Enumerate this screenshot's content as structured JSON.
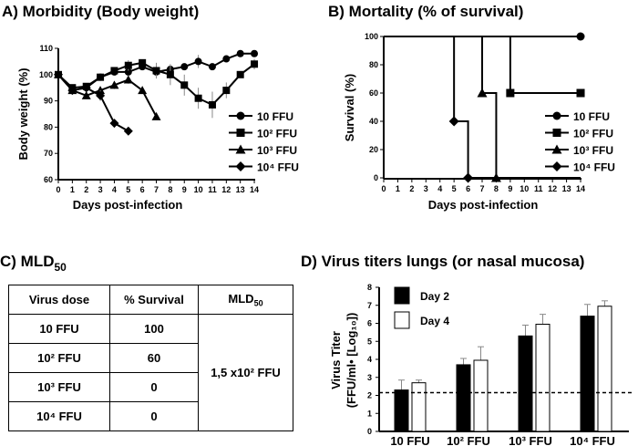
{
  "colors": {
    "ink": "#000000",
    "white": "#ffffff",
    "error": "#888888"
  },
  "chart_data": [
    {
      "type": "line",
      "title": "A) Morbidity (Body weight)",
      "xlabel": "Days post-infection",
      "ylabel": "Body weight (%)",
      "xlim": [
        0,
        14
      ],
      "ylim": [
        60,
        110
      ],
      "xticks": [
        0,
        1,
        2,
        3,
        4,
        5,
        6,
        7,
        8,
        9,
        10,
        11,
        12,
        13,
        14
      ],
      "yticks": [
        60,
        70,
        80,
        90,
        100,
        110
      ],
      "legend": "right",
      "series": [
        {
          "name": "10 FFU",
          "marker": "circle",
          "x": [
            0,
            1,
            2,
            3,
            4,
            5,
            6,
            7,
            8,
            9,
            10,
            11,
            12,
            13,
            14
          ],
          "y": [
            100,
            94,
            95,
            99,
            101,
            101,
            103,
            101,
            102,
            103,
            105,
            103,
            106,
            108,
            108
          ],
          "err": [
            0,
            1,
            1,
            1,
            1,
            1,
            1,
            1,
            1,
            1,
            2.5,
            1,
            1,
            1,
            1
          ]
        },
        {
          "name": "10² FFU",
          "marker": "square",
          "x": [
            0,
            1,
            2,
            3,
            4,
            5,
            6,
            7,
            8,
            9,
            10,
            11,
            12,
            13,
            14
          ],
          "y": [
            100,
            95,
            95.5,
            99,
            101.5,
            103.5,
            104.5,
            101.5,
            100,
            96,
            91,
            88.5,
            94,
            100,
            104
          ],
          "err": [
            0,
            1,
            1,
            1,
            1,
            2,
            1,
            3,
            4,
            4,
            4,
            5,
            3,
            1,
            2
          ]
        },
        {
          "name": "10³ FFU",
          "marker": "triangle",
          "x": [
            0,
            1,
            2,
            3,
            4,
            5,
            6,
            7
          ],
          "y": [
            100,
            94,
            92,
            94,
            96,
            98,
            94,
            84
          ],
          "err": [
            0,
            1,
            1,
            1,
            1.5,
            1.5,
            1,
            0
          ]
        },
        {
          "name": "10⁴ FFU",
          "marker": "diamond",
          "x": [
            0,
            1,
            2,
            3,
            4,
            5
          ],
          "y": [
            100,
            94,
            95,
            92,
            81.5,
            78.5
          ],
          "err": [
            0,
            1,
            1,
            2,
            1.5,
            1
          ]
        }
      ]
    },
    {
      "type": "line",
      "subtype": "step",
      "title": "B) Mortality (% of survival)",
      "xlabel": "Days post-infection",
      "ylabel": "Survival (%)",
      "xlim": [
        0,
        14
      ],
      "ylim": [
        0,
        100
      ],
      "xticks": [
        0,
        1,
        2,
        3,
        4,
        5,
        6,
        7,
        8,
        9,
        10,
        11,
        12,
        13,
        14
      ],
      "yticks": [
        0,
        20,
        40,
        60,
        80,
        100
      ],
      "legend": "right",
      "series": [
        {
          "name": "10 FFU",
          "marker": "circle",
          "steps": [
            [
              0,
              100
            ],
            [
              14,
              100
            ]
          ],
          "markers": [
            [
              14,
              100
            ]
          ]
        },
        {
          "name": "10² FFU",
          "marker": "square",
          "steps": [
            [
              0,
              100
            ],
            [
              9,
              60
            ],
            [
              14,
              60
            ]
          ],
          "markers": [
            [
              9,
              60
            ],
            [
              14,
              60
            ]
          ]
        },
        {
          "name": "10³ FFU",
          "marker": "triangle",
          "steps": [
            [
              0,
              100
            ],
            [
              7,
              60
            ],
            [
              8,
              0
            ],
            [
              14,
              0
            ]
          ],
          "markers": [
            [
              7,
              60
            ],
            [
              8,
              0
            ]
          ]
        },
        {
          "name": "10⁴ FFU",
          "marker": "diamond",
          "steps": [
            [
              0,
              100
            ],
            [
              5,
              40
            ],
            [
              6,
              0
            ],
            [
              14,
              0
            ]
          ],
          "markers": [
            [
              5,
              40
            ],
            [
              6,
              0
            ]
          ]
        }
      ]
    },
    {
      "type": "table",
      "title": "C) MLD",
      "title_sub": "50",
      "headers": [
        "Virus dose",
        "% Survival",
        "MLD"
      ],
      "header_sub": "50",
      "rows": [
        [
          "10 FFU",
          "100"
        ],
        [
          "10² FFU",
          "60"
        ],
        [
          "10³ FFU",
          "0"
        ],
        [
          "10⁴ FFU",
          "0"
        ]
      ],
      "mld50": "1,5 x10² FFU"
    },
    {
      "type": "bar",
      "title": "D) Virus titers lungs (or nasal mucosa)",
      "ylabel_line1": "Virus Titer",
      "ylabel_line2": "(FFU/ml• [Log₁₀])",
      "ylim": [
        0,
        8
      ],
      "yticks": [
        0,
        1,
        2,
        3,
        4,
        5,
        6,
        7,
        8
      ],
      "categories": [
        "10 FFU",
        "10² FFU",
        "10³ FFU",
        "10⁴ FFU"
      ],
      "detection_limit": 2.15,
      "legend": "top-left",
      "series": [
        {
          "name": "Day 2",
          "fill": "#000000",
          "values": [
            2.3,
            3.7,
            5.3,
            6.4
          ],
          "err": [
            0.55,
            0.35,
            0.6,
            0.65
          ]
        },
        {
          "name": "Day 4",
          "fill": "#ffffff",
          "values": [
            2.7,
            3.95,
            5.95,
            6.95
          ],
          "err": [
            0.15,
            0.75,
            0.55,
            0.3
          ]
        }
      ]
    }
  ]
}
